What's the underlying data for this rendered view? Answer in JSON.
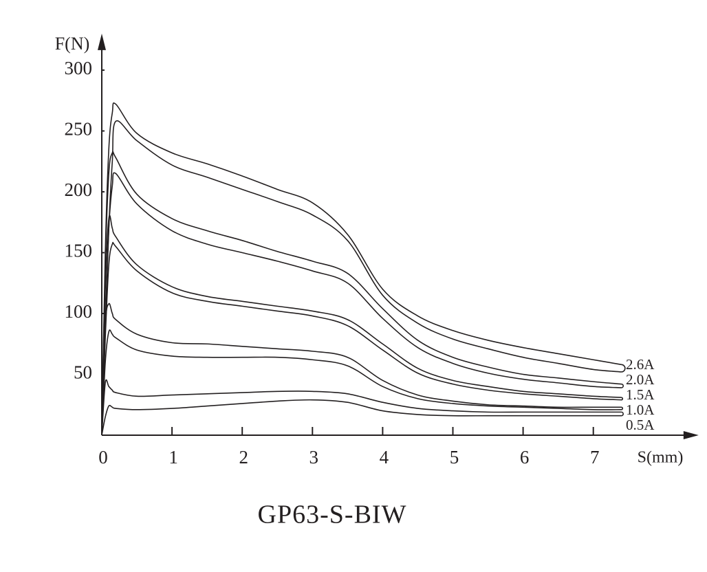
{
  "chart_data": {
    "type": "line",
    "title": "GP63-S-BIW",
    "x_label": "S(mm)",
    "y_label": "F(N)",
    "x": [
      0,
      0.05,
      0.1,
      0.15,
      0.2,
      0.5,
      1,
      1.5,
      2,
      2.5,
      3,
      3.5,
      4,
      4.5,
      5,
      5.5,
      6,
      6.5,
      7,
      7.4
    ],
    "series": [
      {
        "name": "2.6A",
        "color": "#231f20",
        "values": [
          0,
          150,
          235,
          265,
          272,
          248,
          232,
          223,
          213,
          202,
          191,
          165,
          120,
          98,
          86,
          78,
          72,
          67,
          62,
          58
        ],
        "return_values": [
          0,
          90,
          170,
          225,
          258,
          242,
          222,
          212,
          202,
          192,
          181,
          160,
          115,
          92,
          79,
          71,
          64,
          59,
          54,
          52
        ]
      },
      {
        "name": "2.0A",
        "color": "#231f20",
        "values": [
          0,
          140,
          215,
          232,
          228,
          198,
          178,
          168,
          160,
          151,
          143,
          133,
          104,
          78,
          64,
          56,
          50,
          47,
          44,
          42
        ],
        "return_values": [
          0,
          90,
          170,
          205,
          215,
          190,
          168,
          157,
          150,
          143,
          135,
          125,
          96,
          72,
          59,
          51,
          46,
          43,
          40,
          39
        ]
      },
      {
        "name": "1.5A",
        "color": "#231f20",
        "values": [
          0,
          120,
          178,
          170,
          163,
          140,
          122,
          114,
          110,
          106,
          102,
          95,
          75,
          55,
          45,
          40,
          36,
          34,
          32,
          31
        ],
        "return_values": [
          0,
          80,
          140,
          157,
          155,
          135,
          117,
          110,
          106,
          102,
          98,
          90,
          70,
          51,
          42,
          37,
          34,
          32,
          30,
          29
        ]
      },
      {
        "name": "1.0A",
        "color": "#231f20",
        "values": [
          0,
          90,
          108,
          100,
          95,
          83,
          76,
          75,
          73,
          71,
          69,
          64,
          45,
          33,
          28,
          25,
          24,
          23,
          23,
          23
        ],
        "return_values": [
          0,
          60,
          85,
          83,
          80,
          70,
          65,
          64,
          64,
          64,
          62,
          57,
          40,
          30,
          26,
          24,
          23,
          22,
          21,
          21
        ]
      },
      {
        "name": "0.5A",
        "color": "#231f20",
        "values": [
          0,
          43,
          40,
          37,
          35,
          32,
          33,
          34,
          35,
          36,
          36,
          34,
          27,
          22,
          20,
          19,
          19,
          19,
          19,
          19
        ],
        "return_values": [
          0,
          15,
          24,
          23,
          22,
          21,
          22,
          24,
          26,
          28,
          29,
          27,
          20,
          17,
          16,
          16,
          16,
          16,
          16,
          16
        ]
      }
    ],
    "xlim": [
      0,
      8.5
    ],
    "ylim": [
      0,
      330
    ],
    "xticks": [
      0,
      1,
      2,
      3,
      4,
      5,
      6,
      7
    ],
    "yticks": [
      50,
      100,
      150,
      200,
      250,
      300
    ]
  }
}
